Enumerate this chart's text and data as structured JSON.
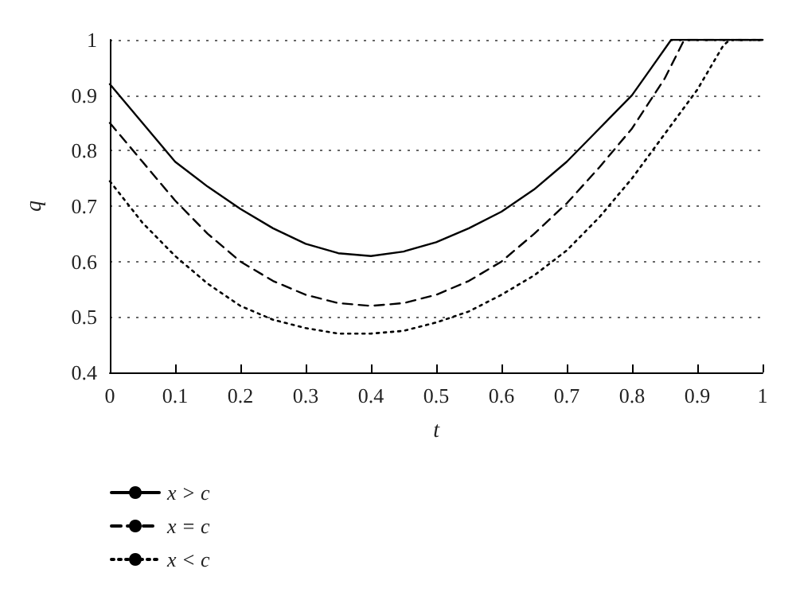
{
  "chart_data": {
    "type": "line",
    "xlabel": "t",
    "ylabel": "q",
    "xlim": [
      0,
      1
    ],
    "xticks": [
      0,
      0.1,
      0.2,
      0.3,
      0.4,
      0.5,
      0.6,
      0.7,
      0.8,
      0.9,
      1
    ],
    "ylim": [
      0.4,
      1
    ],
    "yticks": [
      0.4,
      0.5,
      0.6,
      0.7,
      0.8,
      0.9,
      1
    ],
    "grid": "y",
    "legend": "bottom left",
    "marker": "none",
    "series": [
      {
        "name": "x > c",
        "color": "#000000",
        "line_style": "solid",
        "x": [
          0,
          0.05,
          0.1,
          0.15,
          0.2,
          0.25,
          0.3,
          0.35,
          0.4,
          0.45,
          0.5,
          0.55,
          0.6,
          0.65,
          0.7,
          0.75,
          0.8,
          0.83,
          0.86,
          0.87,
          1
        ],
        "values": [
          0.92,
          0.85,
          0.78,
          0.735,
          0.695,
          0.66,
          0.632,
          0.615,
          0.61,
          0.618,
          0.635,
          0.66,
          0.69,
          0.73,
          0.78,
          0.84,
          0.9,
          0.95,
          1.0,
          1.0,
          1.0
        ]
      },
      {
        "name": "x = c",
        "color": "#000000",
        "line_style": "dashed",
        "x": [
          0,
          0.05,
          0.1,
          0.15,
          0.2,
          0.25,
          0.3,
          0.35,
          0.4,
          0.45,
          0.5,
          0.55,
          0.6,
          0.65,
          0.7,
          0.75,
          0.8,
          0.85,
          0.88,
          1
        ],
        "values": [
          0.85,
          0.78,
          0.71,
          0.65,
          0.6,
          0.565,
          0.54,
          0.525,
          0.52,
          0.525,
          0.54,
          0.565,
          0.6,
          0.65,
          0.705,
          0.77,
          0.84,
          0.93,
          1.0,
          1.0
        ]
      },
      {
        "name": "x < c",
        "color": "#000000",
        "line_style": "dotted",
        "x": [
          0,
          0.05,
          0.1,
          0.15,
          0.2,
          0.25,
          0.3,
          0.35,
          0.4,
          0.45,
          0.5,
          0.55,
          0.6,
          0.65,
          0.7,
          0.75,
          0.8,
          0.85,
          0.9,
          0.94,
          0.95,
          1
        ],
        "values": [
          0.745,
          0.67,
          0.61,
          0.56,
          0.52,
          0.495,
          0.48,
          0.47,
          0.47,
          0.475,
          0.49,
          0.51,
          0.54,
          0.575,
          0.62,
          0.68,
          0.75,
          0.83,
          0.91,
          0.99,
          1.0,
          1.0
        ]
      }
    ]
  }
}
